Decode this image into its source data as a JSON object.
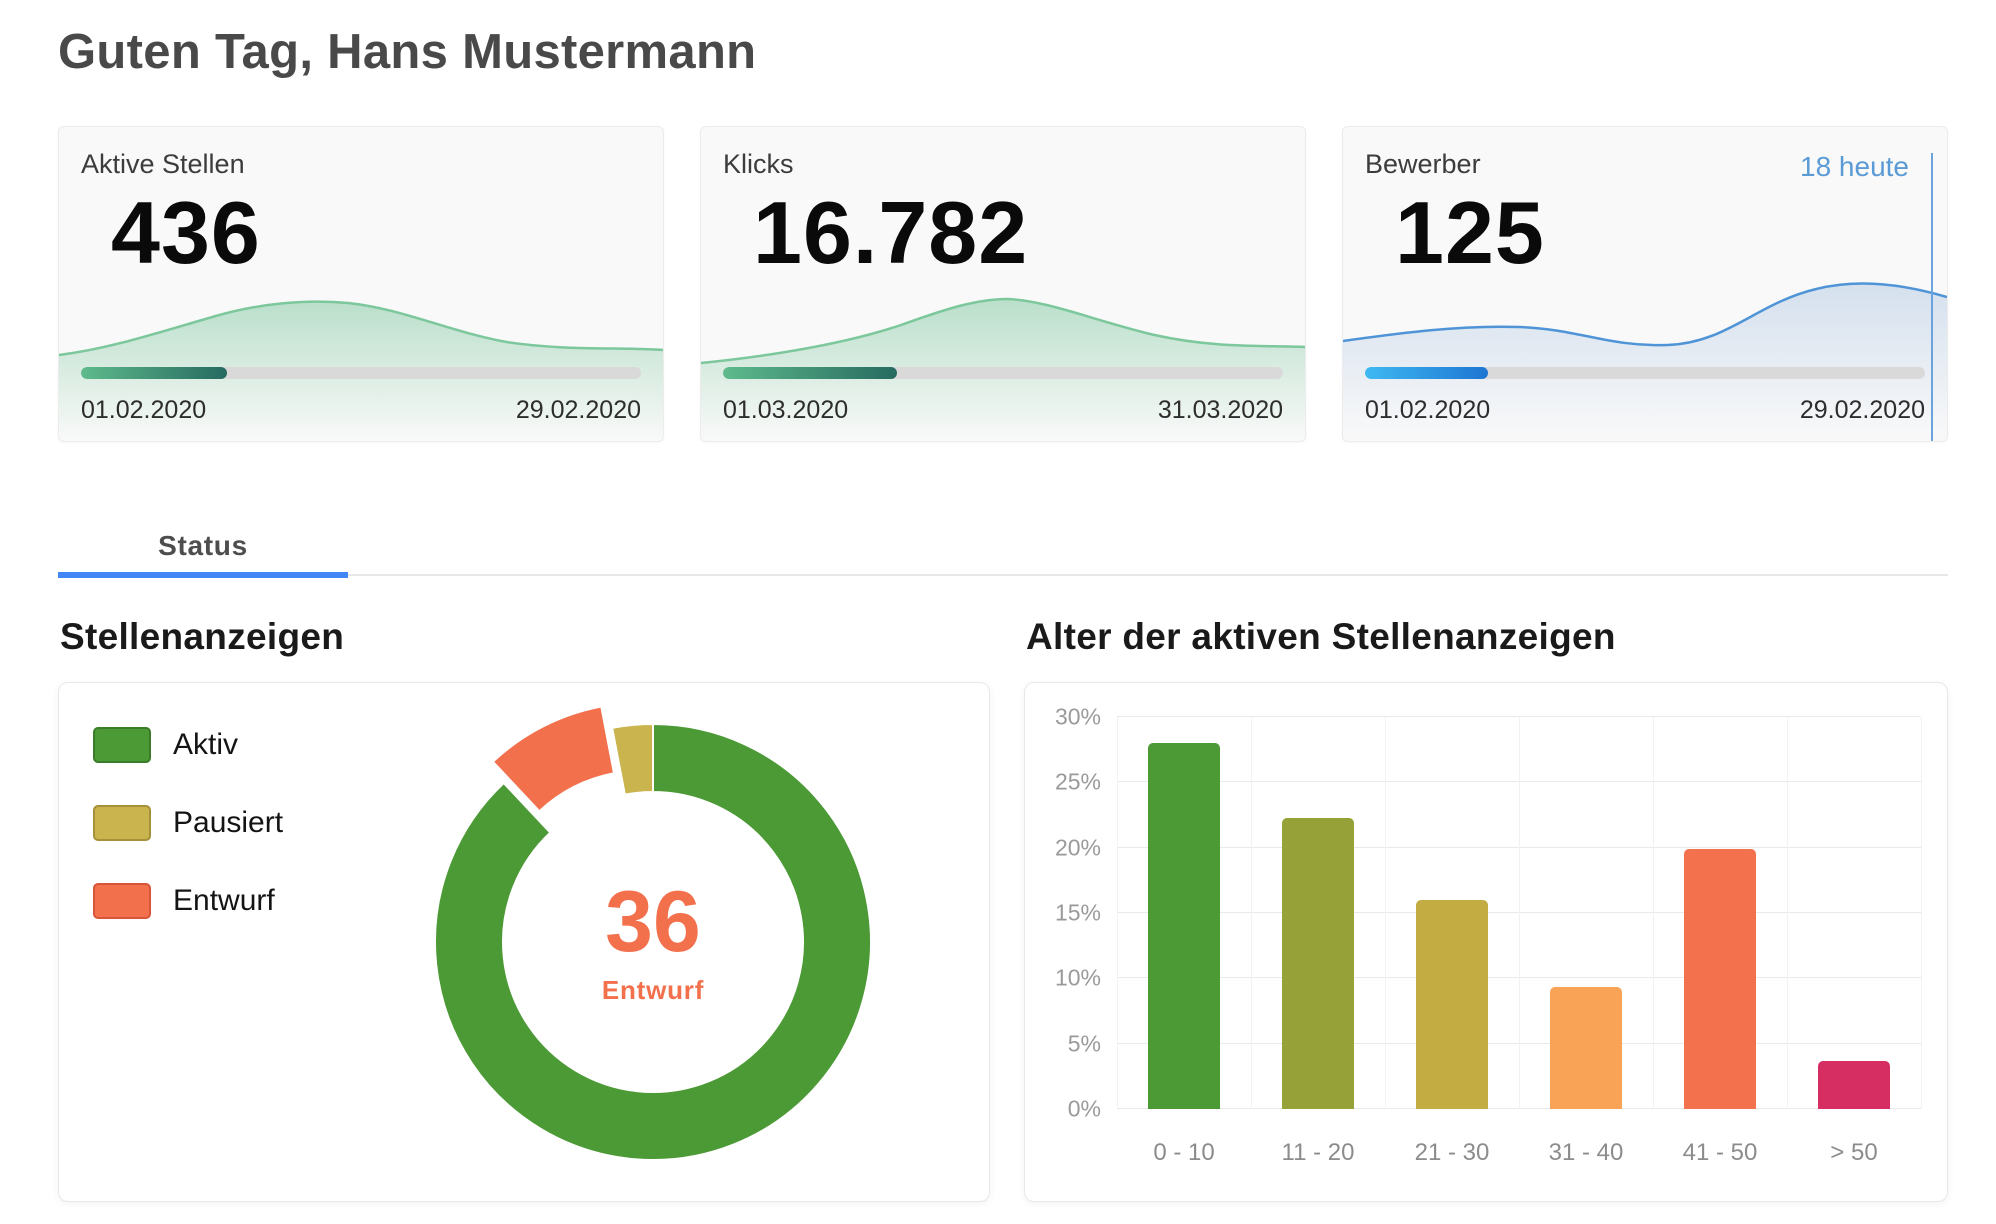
{
  "page": {
    "greeting": "Guten Tag, Hans Mustermann"
  },
  "kpi_cards": [
    {
      "title": "Aktive Stellen",
      "value": "436",
      "date_from": "01.02.2020",
      "date_to": "29.02.2020",
      "progress_percent": 26,
      "theme": "green"
    },
    {
      "title": "Klicks",
      "value": "16.782",
      "date_from": "01.03.2020",
      "date_to": "31.03.2020",
      "progress_percent": 31,
      "theme": "green"
    },
    {
      "title": "Bewerber",
      "value": "125",
      "badge": "18 heute",
      "date_from": "01.02.2020",
      "date_to": "29.02.2020",
      "progress_percent": 22,
      "theme": "blue"
    }
  ],
  "tabs": [
    {
      "label": "Status",
      "active": true
    }
  ],
  "colors": {
    "accent_blue": "#4285f4",
    "badge_blue": "#5b9bd5",
    "kpi_green_from": "#5eba8c",
    "kpi_green_to": "#266a60",
    "kpi_blue_from": "#3fb9f2",
    "kpi_blue_to": "#1d76d2",
    "donut_center": "#f3704d"
  },
  "chart_data": [
    {
      "type": "pie",
      "title": "Stellenanzeigen",
      "legend_position": "left",
      "legend": [
        {
          "label": "Aktiv",
          "color": "#4c9a35",
          "border": "#3a7d28"
        },
        {
          "label": "Pausiert",
          "color": "#c9b44e",
          "border": "#a6913a"
        },
        {
          "label": "Entwurf",
          "color": "#f3704d",
          "border": "#d9553a"
        }
      ],
      "slices": [
        {
          "label": "Aktiv",
          "value": 88,
          "color": "#4c9a35",
          "exploded": false
        },
        {
          "label": "Entwurf",
          "value": 9,
          "color": "#f3704d",
          "exploded": true
        },
        {
          "label": "Pausiert",
          "value": 3,
          "color": "#c9b44e",
          "exploded": false
        }
      ],
      "explode_offset": 24,
      "center_value": "36",
      "center_label": "Entwurf"
    },
    {
      "type": "bar",
      "title": "Alter der aktiven Stellenanzeigen",
      "categories": [
        "0 - 10",
        "11 - 20",
        "21 - 30",
        "31 - 40",
        "41 - 50",
        "> 50"
      ],
      "values": [
        28,
        22.3,
        16,
        9.3,
        19.9,
        3.7
      ],
      "colors": [
        "#4c9a35",
        "#96a138",
        "#c3ad43",
        "#f8a355",
        "#f4714e",
        "#d62e63"
      ],
      "xlabel": "",
      "ylabel": "",
      "ylim": [
        0,
        30
      ],
      "yticks": [
        "0%",
        "5%",
        "10%",
        "15%",
        "20%",
        "25%",
        "30%"
      ],
      "grid": true,
      "legend_position": "none"
    }
  ]
}
